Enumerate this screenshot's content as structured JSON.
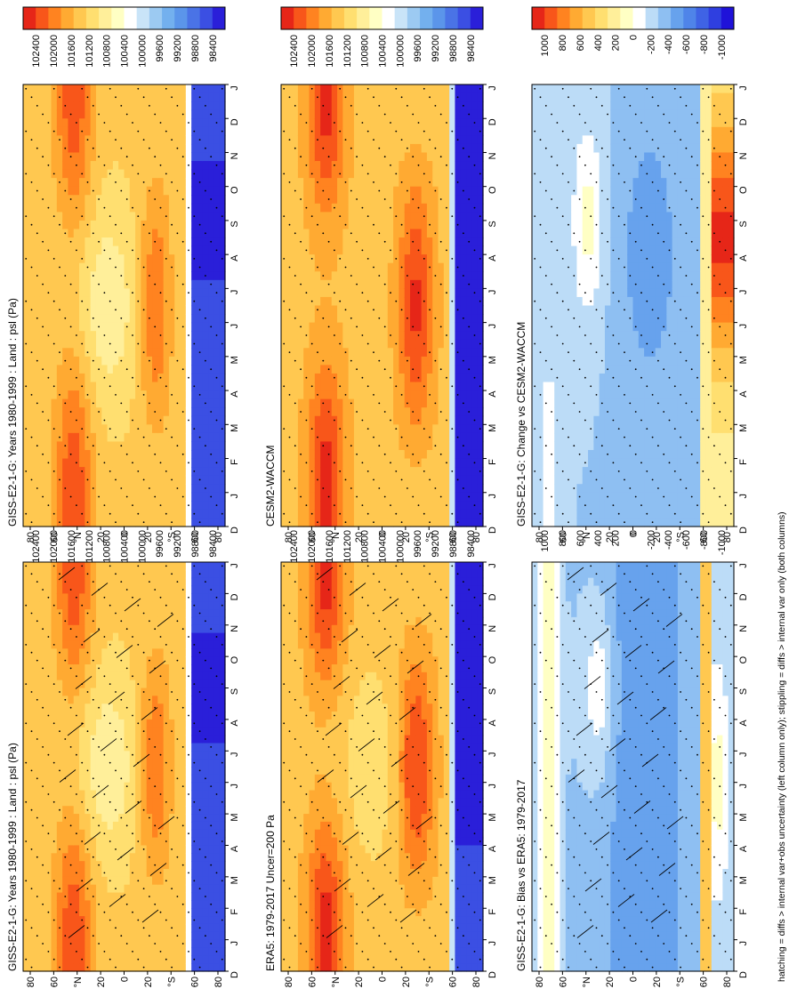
{
  "figure": {
    "footnote": "hatching = diffs > internal var+obs uncertainty (left column only); stippling = diffs > internal var only (both columns)"
  },
  "colors": {
    "abs_scale": [
      "#2a1fd9",
      "#3b4fe3",
      "#4a73e6",
      "#5b95ea",
      "#73b0ee",
      "#9ccaf2",
      "#c9e4f8",
      "#ffffff",
      "#ffffc4",
      "#ffef9a",
      "#ffdf70",
      "#ffc850",
      "#ffaa32",
      "#ff8320",
      "#f8561a",
      "#e62618"
    ],
    "diff_scale": [
      "#1f12d9",
      "#2f3fe0",
      "#3f63e5",
      "#4f84e9",
      "#67a2ed",
      "#8ebff2",
      "#bcdcf7",
      "#ffffff",
      "#ffffc4",
      "#ffef9a",
      "#ffdf70",
      "#ffc850",
      "#ffaa32",
      "#ff8320",
      "#f8561a",
      "#e62618"
    ]
  },
  "chart_data": [
    {
      "type": "heatmap",
      "title": "GISS-E2-1-G: Years 1980-1999 : Land : psl (Pa)",
      "x_ticks": [
        "D",
        "J",
        "F",
        "M",
        "A",
        "M",
        "J",
        "J",
        "A",
        "S",
        "O",
        "N",
        "D",
        "J"
      ],
      "y_ticks": [
        "80",
        "60",
        "°N",
        "20",
        "0",
        "20",
        "°S",
        "60",
        "80"
      ],
      "colorbar_ticks": [
        "102400",
        "102000",
        "101600",
        "101200",
        "100800",
        "100400",
        "100000",
        "99600",
        "99200",
        "98800",
        "98400"
      ],
      "hatching": true,
      "stippling": true,
      "field": "abs_giss"
    },
    {
      "type": "heatmap",
      "title": "GISS-E2-1-G: Years 1980-1999 : Land : psl (Pa)",
      "x_ticks": [
        "D",
        "J",
        "F",
        "M",
        "A",
        "M",
        "J",
        "J",
        "A",
        "S",
        "O",
        "N",
        "D",
        "J"
      ],
      "y_ticks": [
        "80",
        "60",
        "°N",
        "20",
        "0",
        "20",
        "°S",
        "60",
        "80"
      ],
      "colorbar_ticks": [
        "102400",
        "102000",
        "101600",
        "101200",
        "100800",
        "100400",
        "100000",
        "99600",
        "99200",
        "98800",
        "98400"
      ],
      "hatching": false,
      "stippling": true,
      "field": "abs_giss"
    },
    {
      "type": "heatmap",
      "title": "ERA5: 1979-2017 Uncer=200 Pa",
      "x_ticks": [
        "D",
        "J",
        "F",
        "M",
        "A",
        "M",
        "J",
        "J",
        "A",
        "S",
        "O",
        "N",
        "D",
        "J"
      ],
      "y_ticks": [
        "80",
        "60",
        "°N",
        "20",
        "0",
        "20",
        "°S",
        "60",
        "80"
      ],
      "colorbar_ticks": [
        "102400",
        "102000",
        "101600",
        "101200",
        "100800",
        "100400",
        "100000",
        "99600",
        "99200",
        "98800",
        "98400"
      ],
      "hatching": true,
      "stippling": true,
      "field": "abs_era5"
    },
    {
      "type": "heatmap",
      "title": "CESM2-WACCM",
      "x_ticks": [
        "D",
        "J",
        "F",
        "M",
        "A",
        "M",
        "J",
        "J",
        "A",
        "S",
        "O",
        "N",
        "D",
        "J"
      ],
      "y_ticks": [
        "80",
        "60",
        "°N",
        "20",
        "0",
        "20",
        "°S",
        "60",
        "80"
      ],
      "colorbar_ticks": [
        "102400",
        "102000",
        "101600",
        "101200",
        "100800",
        "100400",
        "100000",
        "99600",
        "99200",
        "98800",
        "98400"
      ],
      "hatching": false,
      "stippling": true,
      "field": "abs_cesm"
    },
    {
      "type": "heatmap",
      "title": "GISS-E2-1-G: Bias vs ERA5: 1979-2017",
      "x_ticks": [
        "D",
        "J",
        "F",
        "M",
        "A",
        "M",
        "J",
        "J",
        "A",
        "S",
        "O",
        "N",
        "D",
        "J"
      ],
      "y_ticks": [
        "80",
        "60",
        "°N",
        "20",
        "0",
        "20",
        "°S",
        "60",
        "80"
      ],
      "colorbar_ticks": [
        "1000",
        "800",
        "600",
        "400",
        "200",
        "0",
        "-200",
        "-400",
        "-600",
        "-800",
        "-1000"
      ],
      "hatching": true,
      "stippling": true,
      "field": "bias"
    },
    {
      "type": "heatmap",
      "title": "GISS-E2-1-G: Change vs CESM2-WACCM",
      "x_ticks": [
        "D",
        "J",
        "F",
        "M",
        "A",
        "M",
        "J",
        "J",
        "A",
        "S",
        "O",
        "N",
        "D",
        "J"
      ],
      "y_ticks": [
        "80",
        "60",
        "°N",
        "20",
        "0",
        "20",
        "°S",
        "60",
        "80"
      ],
      "colorbar_ticks": [
        "1000",
        "800",
        "600",
        "400",
        "200",
        "0",
        "-200",
        "-400",
        "-600",
        "-800",
        "-1000"
      ],
      "hatching": false,
      "stippling": true,
      "field": "change"
    }
  ]
}
